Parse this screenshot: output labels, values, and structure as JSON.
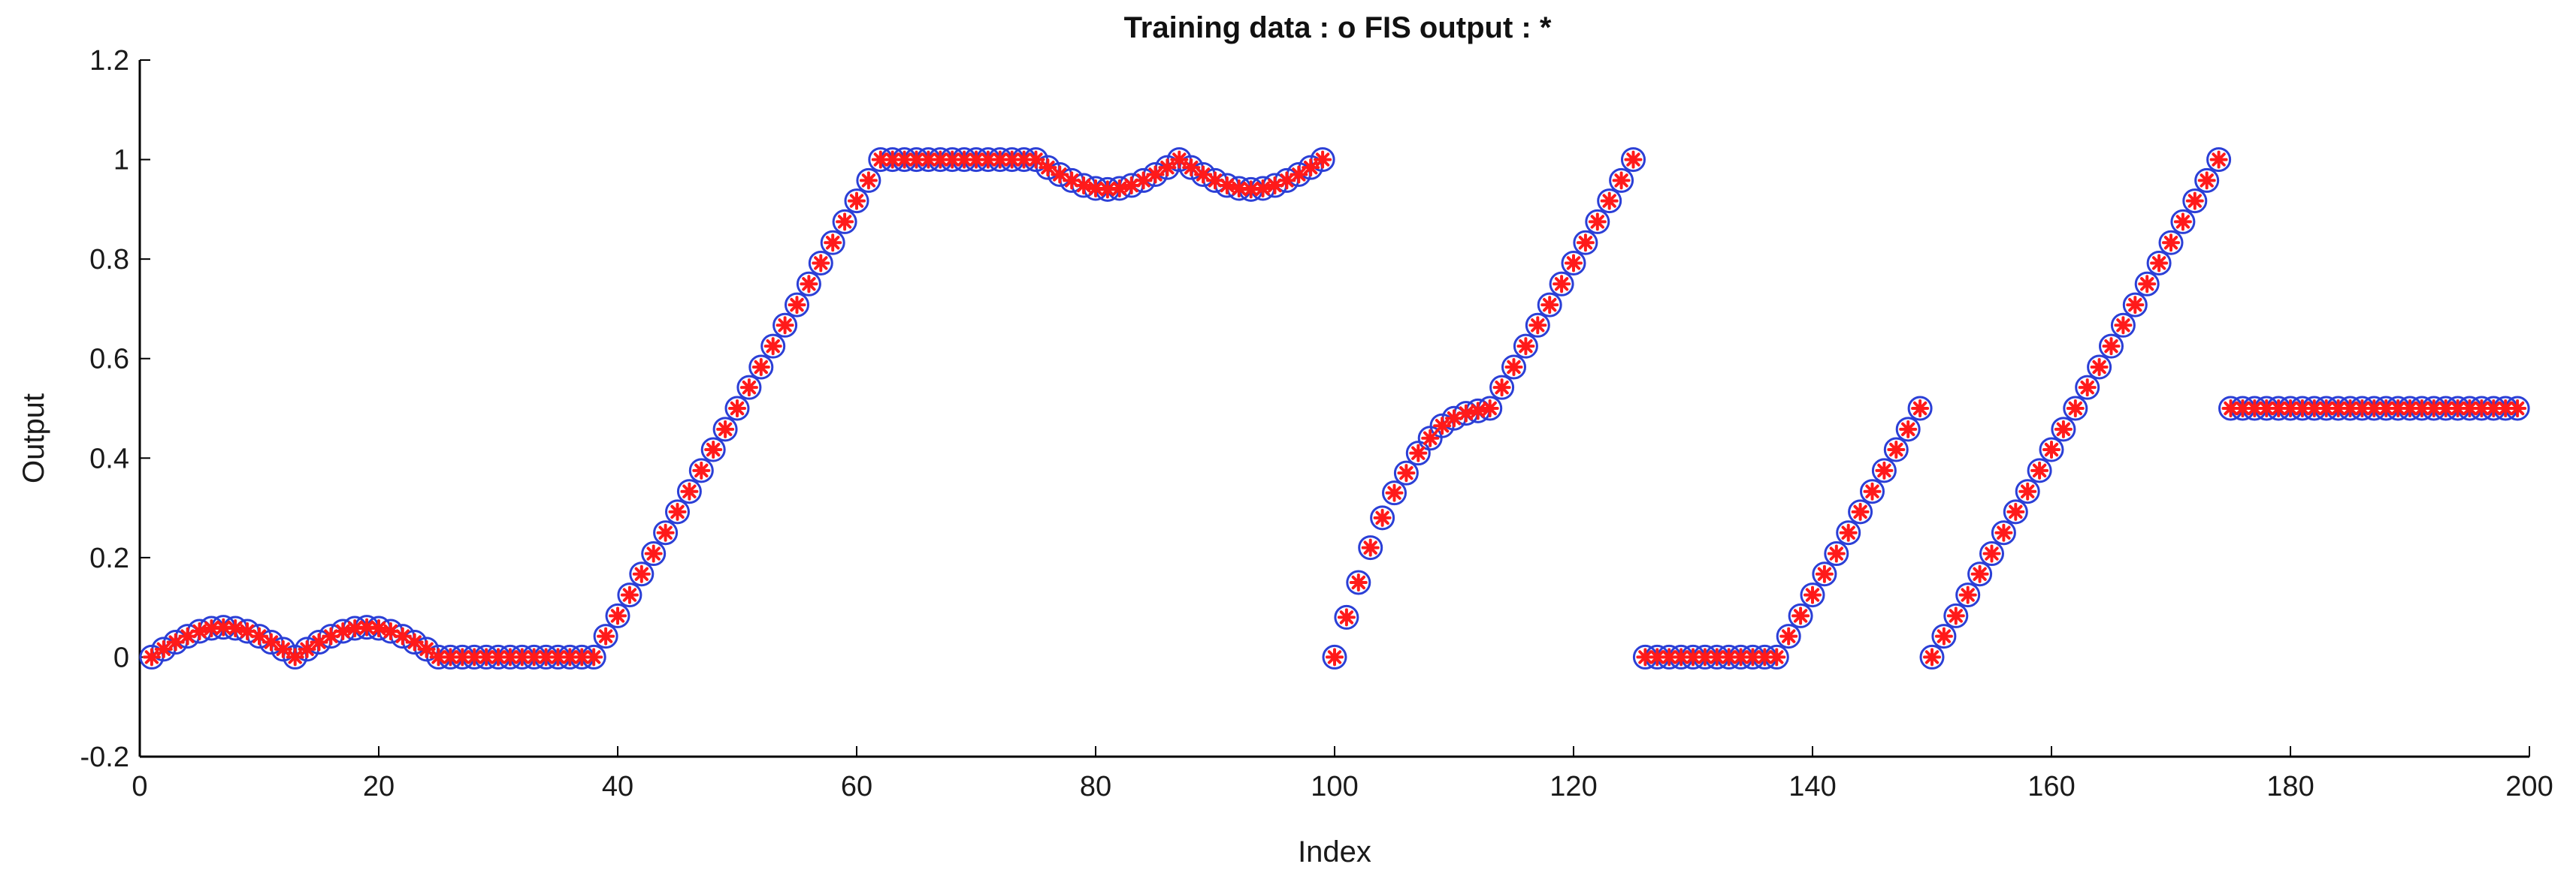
{
  "chart_data": {
    "type": "scatter",
    "title": "Training data : o   FIS output : *",
    "xlabel": "Index",
    "ylabel": "Output",
    "xlim": [
      0,
      200
    ],
    "ylim": [
      -0.2,
      1.2
    ],
    "xticks": [
      0,
      20,
      40,
      60,
      80,
      100,
      120,
      140,
      160,
      180,
      200
    ],
    "yticks": [
      -0.2,
      0,
      0.2,
      0.4,
      0.6,
      0.8,
      1,
      1.2
    ],
    "xtick_labels": [
      "0",
      "20",
      "40",
      "60",
      "80",
      "100",
      "120",
      "140",
      "160",
      "180",
      "200"
    ],
    "ytick_labels": [
      "-0.2",
      "0",
      "0.2",
      "0.4",
      "0.6",
      "0.8",
      "1",
      "1.2"
    ],
    "grid": false,
    "colors": {
      "training": "#2b3fd6",
      "fis": "#ff1a1a",
      "axis": "#000000"
    },
    "markers": {
      "training": "o",
      "fis": "*"
    },
    "x": [
      1,
      2,
      3,
      4,
      5,
      6,
      7,
      8,
      9,
      10,
      11,
      12,
      13,
      14,
      15,
      16,
      17,
      18,
      19,
      20,
      21,
      22,
      23,
      24,
      25,
      26,
      27,
      28,
      29,
      30,
      31,
      32,
      33,
      34,
      35,
      36,
      37,
      38,
      39,
      40,
      41,
      42,
      43,
      44,
      45,
      46,
      47,
      48,
      49,
      50,
      51,
      52,
      53,
      54,
      55,
      56,
      57,
      58,
      59,
      60,
      61,
      62,
      63,
      64,
      65,
      66,
      67,
      68,
      69,
      70,
      71,
      72,
      73,
      74,
      75,
      76,
      77,
      78,
      79,
      80,
      81,
      82,
      83,
      84,
      85,
      86,
      87,
      88,
      89,
      90,
      91,
      92,
      93,
      94,
      95,
      96,
      97,
      98,
      99,
      100,
      101,
      102,
      103,
      104,
      105,
      106,
      107,
      108,
      109,
      110,
      111,
      112,
      113,
      114,
      115,
      116,
      117,
      118,
      119,
      120,
      121,
      122,
      123,
      124,
      125,
      126,
      127,
      128,
      129,
      130,
      131,
      132,
      133,
      134,
      135,
      136,
      137,
      138,
      139,
      140,
      141,
      142,
      143,
      144,
      145,
      146,
      147,
      148,
      149,
      150,
      151,
      152,
      153,
      154,
      155,
      156,
      157,
      158,
      159,
      160,
      161,
      162,
      163,
      164,
      165,
      166,
      167,
      168,
      169,
      170,
      171,
      172,
      173,
      174,
      175,
      176,
      177,
      178,
      179,
      180,
      181,
      182,
      183,
      184,
      185,
      186,
      187,
      188,
      189,
      190,
      191,
      192,
      193,
      194,
      195,
      196,
      197,
      198,
      199
    ],
    "y": [
      0,
      0.016,
      0.03,
      0.042,
      0.052,
      0.058,
      0.06,
      0.058,
      0.052,
      0.042,
      0.03,
      0.016,
      0,
      0.016,
      0.03,
      0.042,
      0.052,
      0.058,
      0.06,
      0.058,
      0.052,
      0.042,
      0.03,
      0.016,
      0,
      0,
      0,
      0,
      0,
      0,
      0,
      0,
      0,
      0,
      0,
      0,
      0,
      0,
      0.042,
      0.083,
      0.125,
      0.167,
      0.208,
      0.25,
      0.292,
      0.333,
      0.375,
      0.417,
      0.458,
      0.5,
      0.542,
      0.583,
      0.625,
      0.667,
      0.708,
      0.75,
      0.792,
      0.833,
      0.875,
      0.917,
      0.958,
      1,
      1,
      1,
      1,
      1,
      1,
      1,
      1,
      1,
      1,
      1,
      1,
      1,
      1,
      0.984,
      0.97,
      0.958,
      0.948,
      0.942,
      0.94,
      0.942,
      0.948,
      0.958,
      0.97,
      0.984,
      1,
      0.984,
      0.97,
      0.958,
      0.948,
      0.942,
      0.94,
      0.942,
      0.948,
      0.958,
      0.97,
      0.984,
      1,
      0,
      0.08,
      0.15,
      0.22,
      0.28,
      0.33,
      0.37,
      0.41,
      0.44,
      0.465,
      0.48,
      0.49,
      0.495,
      0.5,
      0.542,
      0.583,
      0.625,
      0.667,
      0.708,
      0.75,
      0.792,
      0.833,
      0.875,
      0.917,
      0.958,
      1,
      0,
      0,
      0,
      0,
      0,
      0,
      0,
      0,
      0,
      0,
      0,
      0,
      0.042,
      0.083,
      0.125,
      0.167,
      0.208,
      0.25,
      0.292,
      0.333,
      0.375,
      0.417,
      0.458,
      0.5,
      0,
      0.042,
      0.083,
      0.125,
      0.167,
      0.208,
      0.25,
      0.292,
      0.333,
      0.375,
      0.417,
      0.458,
      0.5,
      0.542,
      0.583,
      0.625,
      0.667,
      0.708,
      0.75,
      0.792,
      0.833,
      0.875,
      0.917,
      0.958,
      1,
      0.5,
      0.5,
      0.5,
      0.5,
      0.5,
      0.5,
      0.5,
      0.5,
      0.5,
      0.5,
      0.5,
      0.5,
      0.5,
      0.5,
      0.5,
      0.5,
      0.5,
      0.5,
      0.5,
      0.5,
      0.5,
      0.5,
      0.5,
      0.5,
      0.5
    ]
  }
}
